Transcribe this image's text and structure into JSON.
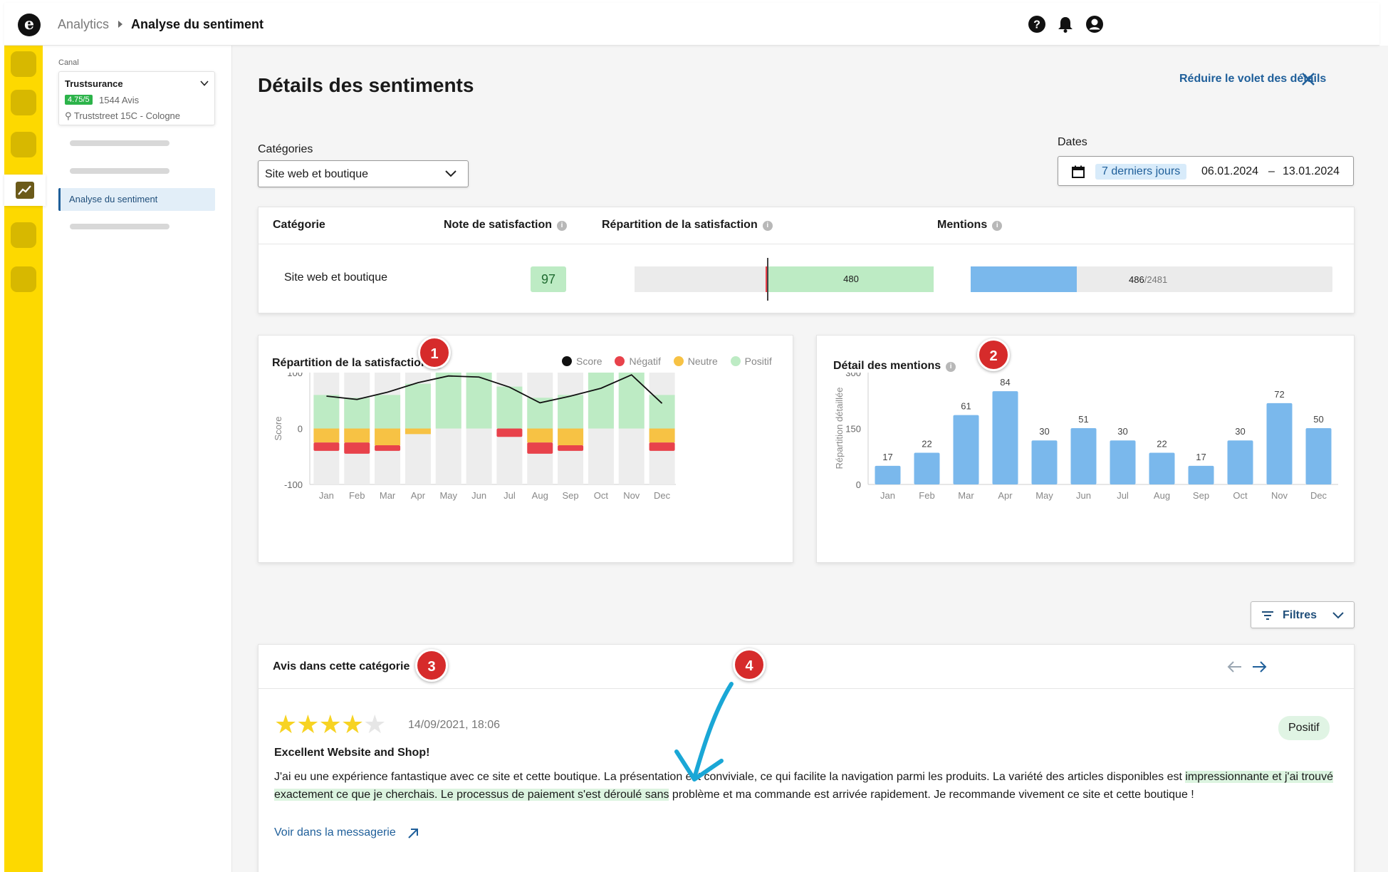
{
  "topbar": {
    "logo_letter": "e",
    "breadcrumb_root": "Analytics",
    "breadcrumb_current": "Analyse du sentiment",
    "icons": [
      "help-icon",
      "bell-icon",
      "user-icon"
    ]
  },
  "sidebar": {
    "canal_label": "Canal",
    "canal_name": "Trustsurance",
    "canal_rating": "4.75/5",
    "canal_reviews": "1544 Avis",
    "canal_address": "Truststreet 15C - Cologne",
    "active_item": "Analyse du sentiment"
  },
  "main": {
    "title": "Détails des sentiments",
    "close_panel_label": "Réduire le volet des détails",
    "categories_label": "Catégories",
    "category_selected": "Site web et boutique",
    "dates_label": "Dates",
    "date_preset": "7 derniers jours",
    "date_start": "06.01.2024",
    "date_sep": "–",
    "date_end": "13.01.2024"
  },
  "summary_table": {
    "headers": [
      "Catégorie",
      "Note de satisfaction",
      "Répartition de la satisfaction",
      "Mentions"
    ],
    "row": {
      "category": "Site web et boutique",
      "score": "97",
      "positive_count": "480",
      "mentions": "486",
      "mentions_total": "/2481",
      "mentions_fraction": 0.196
    }
  },
  "chart1": {
    "title": "Répartition de la satisfaction",
    "marker": "1",
    "legend": [
      {
        "label": "Score",
        "color": "#111111"
      },
      {
        "label": "Négatif",
        "color": "#e8424b"
      },
      {
        "label": "Neutre",
        "color": "#f7c244"
      },
      {
        "label": "Positif",
        "color": "#bdebc4"
      }
    ]
  },
  "chart2": {
    "title": "Détail des mentions",
    "marker": "2"
  },
  "chart_data": [
    {
      "type": "bar",
      "title": "Répartition de la satisfaction",
      "ylabel": "Score",
      "ylim": [
        -100,
        100
      ],
      "yticks": [
        "100",
        "0",
        "-100"
      ],
      "categories": [
        "Jan",
        "Feb",
        "Mar",
        "Apr",
        "May",
        "Jun",
        "Jul",
        "Aug",
        "Sep",
        "Oct",
        "Nov",
        "Dec"
      ],
      "series": [
        {
          "name": "Positif",
          "color": "#bdebc4",
          "values": [
            60,
            55,
            60,
            80,
            100,
            100,
            75,
            55,
            60,
            100,
            100,
            60
          ]
        },
        {
          "name": "Neutre",
          "color": "#f7c244",
          "values": [
            -25,
            -25,
            -30,
            -10,
            0,
            0,
            0,
            -25,
            -30,
            0,
            0,
            -25
          ]
        },
        {
          "name": "Négatif",
          "color": "#e8424b",
          "values": [
            -15,
            -20,
            -10,
            0,
            0,
            0,
            -15,
            -20,
            -10,
            0,
            0,
            -15
          ]
        },
        {
          "name": "Score",
          "color": "#111111",
          "type": "line",
          "values": [
            58,
            52,
            65,
            82,
            94,
            92,
            74,
            46,
            58,
            72,
            96,
            45
          ]
        }
      ]
    },
    {
      "type": "bar",
      "title": "Détail des mentions",
      "ylabel": "Répartition détaillée",
      "ylim": [
        0,
        300
      ],
      "yticks": [
        "300",
        "150",
        "0"
      ],
      "categories": [
        "Jan",
        "Feb",
        "Mar",
        "Apr",
        "May",
        "Jun",
        "Jul",
        "Aug",
        "Sep",
        "Oct",
        "Nov",
        "Dec"
      ],
      "values": [
        17,
        22,
        61,
        84,
        30,
        51,
        30,
        22,
        17,
        30,
        72,
        50
      ],
      "value_heights": [
        50,
        85,
        186,
        250,
        118,
        151,
        118,
        85,
        50,
        118,
        218,
        151
      ],
      "color": "#7ab8ec"
    }
  ],
  "filters": {
    "label": "Filtres"
  },
  "reviews": {
    "title": "Avis dans cette catégorie",
    "marker3": "3",
    "marker4": "4",
    "item": {
      "rating": 4,
      "max_rating": 5,
      "date": "14/09/2021, 18:06",
      "sentiment": "Positif",
      "headline": "Excellent Website and Shop!",
      "text_before": "J'ai eu une expérience fantastique avec ce site et cette boutique. La présentation est conviviale, ce qui facilite la navigation parmi les produits. La variété des articles disponibles est ",
      "text_highlight": "impressionnante et j'ai trouvé exactement ce que je cherchais. Le processus de paiement s'est déroulé sans",
      "text_after": " problème et ma commande est arrivée rapidement. Je recommande vivement ce site et cette boutique !",
      "link_label": "Voir dans la messagerie"
    }
  },
  "colors": {
    "rail": "#fdd900",
    "accent_blue": "#1f5f9a",
    "positive": "#bdebc4",
    "neutral": "#f7c244",
    "negative": "#e8424b",
    "mentions_bar": "#7ab8ec",
    "marker_red": "#d62b2b",
    "annotation_arrow": "#1aa7d6",
    "star": "#f7d323"
  }
}
